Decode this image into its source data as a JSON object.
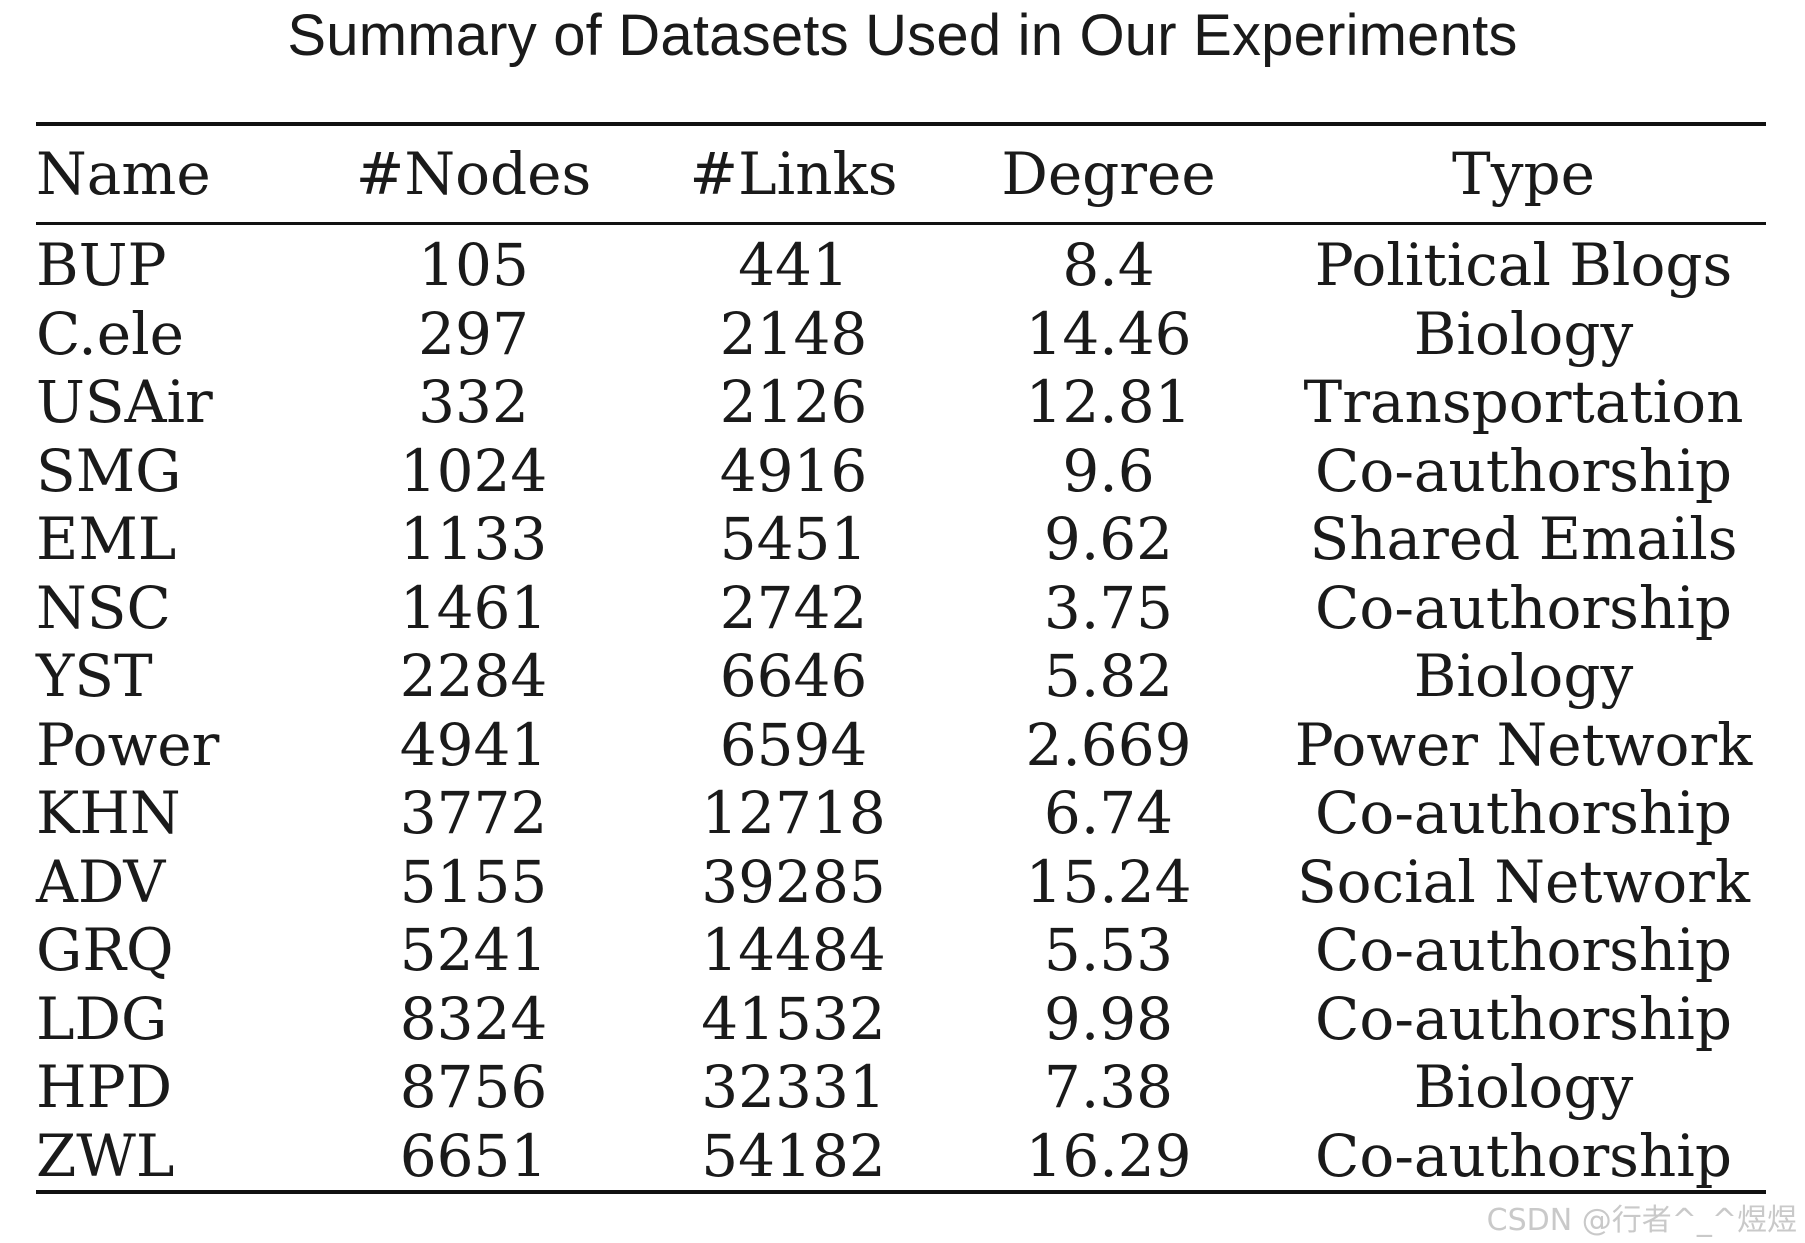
{
  "title": "Summary of Datasets Used in Our Experiments",
  "table": {
    "headers": [
      "Name",
      "#Nodes",
      "#Links",
      "Degree",
      "Type"
    ],
    "rows": [
      [
        "BUP",
        "105",
        "441",
        "8.4",
        "Political Blogs"
      ],
      [
        "C.ele",
        "297",
        "2148",
        "14.46",
        "Biology"
      ],
      [
        "USAir",
        "332",
        "2126",
        "12.81",
        "Transportation"
      ],
      [
        "SMG",
        "1024",
        "4916",
        "9.6",
        "Co-authorship"
      ],
      [
        "EML",
        "1133",
        "5451",
        "9.62",
        "Shared Emails"
      ],
      [
        "NSC",
        "1461",
        "2742",
        "3.75",
        "Co-authorship"
      ],
      [
        "YST",
        "2284",
        "6646",
        "5.82",
        "Biology"
      ],
      [
        "Power",
        "4941",
        "6594",
        "2.669",
        "Power Network"
      ],
      [
        "KHN",
        "3772",
        "12718",
        "6.74",
        "Co-authorship"
      ],
      [
        "ADV",
        "5155",
        "39285",
        "15.24",
        "Social Network"
      ],
      [
        "GRQ",
        "5241",
        "14484",
        "5.53",
        "Co-authorship"
      ],
      [
        "LDG",
        "8324",
        "41532",
        "9.98",
        "Co-authorship"
      ],
      [
        "HPD",
        "8756",
        "32331",
        "7.38",
        "Biology"
      ],
      [
        "ZWL",
        "6651",
        "54182",
        "16.29",
        "Co-authorship"
      ]
    ]
  },
  "watermark": "CSDN @行者^_^煜煜"
}
